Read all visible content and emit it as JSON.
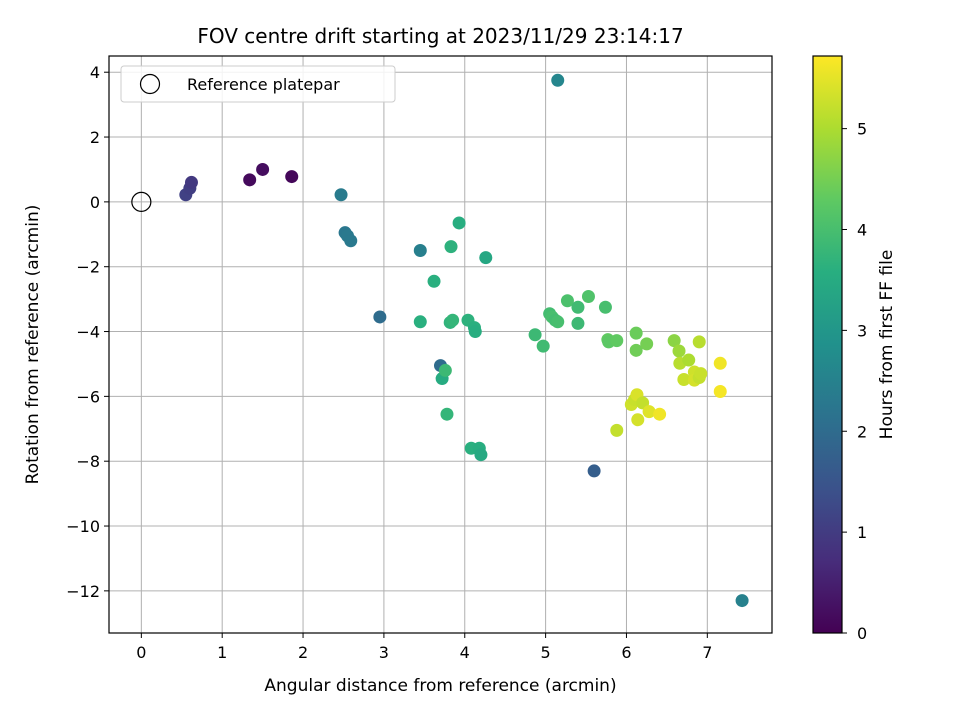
{
  "chart_data": {
    "type": "scatter",
    "title": "FOV centre drift starting at 2023/11/29 23:14:17",
    "xlabel": "Angular distance from reference (arcmin)",
    "ylabel": "Rotation from reference (arcmin)",
    "xlim": [
      -0.4,
      7.8
    ],
    "ylim": [
      -13.3,
      4.5
    ],
    "xticks": [
      0,
      1,
      2,
      3,
      4,
      5,
      6,
      7
    ],
    "yticks": [
      4,
      2,
      0,
      -2,
      -4,
      -6,
      -8,
      -10,
      -12
    ],
    "grid": true,
    "legend": {
      "position": "top-left",
      "entries": [
        {
          "label": "Reference platepar",
          "marker": "open-circle"
        }
      ]
    },
    "reference": {
      "x": 0,
      "y": 0
    },
    "colorbar": {
      "label": "Hours from first FF file",
      "range": [
        0,
        5.72
      ],
      "ticks": [
        0,
        1,
        2,
        3,
        4,
        5
      ],
      "colormap": "viridis"
    },
    "points": [
      {
        "x": 0.55,
        "y": 0.22,
        "hours": 1.1
      },
      {
        "x": 0.6,
        "y": 0.42,
        "hours": 1.05
      },
      {
        "x": 0.62,
        "y": 0.6,
        "hours": 0.95
      },
      {
        "x": 1.34,
        "y": 0.68,
        "hours": 0.15
      },
      {
        "x": 1.5,
        "y": 1.0,
        "hours": 0.2
      },
      {
        "x": 1.86,
        "y": 0.78,
        "hours": 0.1
      },
      {
        "x": 2.47,
        "y": 0.22,
        "hours": 2.35
      },
      {
        "x": 2.52,
        "y": -0.95,
        "hours": 2.25
      },
      {
        "x": 2.55,
        "y": -1.05,
        "hours": 2.3
      },
      {
        "x": 2.59,
        "y": -1.2,
        "hours": 2.3
      },
      {
        "x": 2.95,
        "y": -3.55,
        "hours": 2.0
      },
      {
        "x": 3.45,
        "y": -1.5,
        "hours": 2.45
      },
      {
        "x": 3.45,
        "y": -3.7,
        "hours": 3.6
      },
      {
        "x": 3.62,
        "y": -2.45,
        "hours": 3.6
      },
      {
        "x": 3.7,
        "y": -5.05,
        "hours": 2.0
      },
      {
        "x": 3.72,
        "y": -5.45,
        "hours": 3.5
      },
      {
        "x": 3.76,
        "y": -5.2,
        "hours": 3.85
      },
      {
        "x": 3.78,
        "y": -6.55,
        "hours": 3.75
      },
      {
        "x": 3.82,
        "y": -3.72,
        "hours": 3.7
      },
      {
        "x": 3.83,
        "y": -1.38,
        "hours": 3.65
      },
      {
        "x": 3.85,
        "y": -3.65,
        "hours": 3.75
      },
      {
        "x": 3.93,
        "y": -0.65,
        "hours": 3.55
      },
      {
        "x": 4.04,
        "y": -3.65,
        "hours": 3.65
      },
      {
        "x": 4.08,
        "y": -7.6,
        "hours": 3.6
      },
      {
        "x": 4.12,
        "y": -3.88,
        "hours": 3.6
      },
      {
        "x": 4.13,
        "y": -4.0,
        "hours": 3.55
      },
      {
        "x": 4.18,
        "y": -7.6,
        "hours": 3.55
      },
      {
        "x": 4.2,
        "y": -7.8,
        "hours": 3.45
      },
      {
        "x": 4.26,
        "y": -1.72,
        "hours": 3.4
      },
      {
        "x": 4.87,
        "y": -4.1,
        "hours": 3.85
      },
      {
        "x": 4.97,
        "y": -4.45,
        "hours": 3.9
      },
      {
        "x": 5.05,
        "y": -3.45,
        "hours": 3.95
      },
      {
        "x": 5.08,
        "y": -3.55,
        "hours": 4.0
      },
      {
        "x": 5.12,
        "y": -3.65,
        "hours": 3.95
      },
      {
        "x": 5.15,
        "y": 3.75,
        "hours": 2.6
      },
      {
        "x": 5.15,
        "y": -3.7,
        "hours": 4.0
      },
      {
        "x": 5.27,
        "y": -3.05,
        "hours": 4.05
      },
      {
        "x": 5.4,
        "y": -3.25,
        "hours": 3.9
      },
      {
        "x": 5.4,
        "y": -3.75,
        "hours": 3.85
      },
      {
        "x": 5.53,
        "y": -2.92,
        "hours": 4.1
      },
      {
        "x": 5.6,
        "y": -8.3,
        "hours": 1.7
      },
      {
        "x": 5.74,
        "y": -3.25,
        "hours": 4.0
      },
      {
        "x": 5.77,
        "y": -4.25,
        "hours": 4.3
      },
      {
        "x": 5.78,
        "y": -4.32,
        "hours": 4.25
      },
      {
        "x": 5.88,
        "y": -4.28,
        "hours": 4.3
      },
      {
        "x": 5.88,
        "y": -7.05,
        "hours": 5.2
      },
      {
        "x": 6.06,
        "y": -6.25,
        "hours": 5.3
      },
      {
        "x": 6.1,
        "y": -6.1,
        "hours": 5.25
      },
      {
        "x": 6.12,
        "y": -4.05,
        "hours": 4.4
      },
      {
        "x": 6.12,
        "y": -4.58,
        "hours": 4.45
      },
      {
        "x": 6.13,
        "y": -5.95,
        "hours": 5.4
      },
      {
        "x": 6.14,
        "y": -6.72,
        "hours": 5.35
      },
      {
        "x": 6.2,
        "y": -6.2,
        "hours": 5.2
      },
      {
        "x": 6.25,
        "y": -4.38,
        "hours": 4.5
      },
      {
        "x": 6.28,
        "y": -6.47,
        "hours": 5.45
      },
      {
        "x": 6.41,
        "y": -6.55,
        "hours": 5.6
      },
      {
        "x": 6.59,
        "y": -4.28,
        "hours": 4.7
      },
      {
        "x": 6.65,
        "y": -4.6,
        "hours": 4.85
      },
      {
        "x": 6.66,
        "y": -4.98,
        "hours": 5.1
      },
      {
        "x": 6.71,
        "y": -5.48,
        "hours": 5.25
      },
      {
        "x": 6.77,
        "y": -4.88,
        "hours": 5.0
      },
      {
        "x": 6.84,
        "y": -5.25,
        "hours": 5.3
      },
      {
        "x": 6.84,
        "y": -5.5,
        "hours": 5.35
      },
      {
        "x": 6.9,
        "y": -4.32,
        "hours": 5.1
      },
      {
        "x": 6.9,
        "y": -5.42,
        "hours": 5.2
      },
      {
        "x": 6.92,
        "y": -5.3,
        "hours": 5.25
      },
      {
        "x": 7.16,
        "y": -4.98,
        "hours": 5.6
      },
      {
        "x": 7.16,
        "y": -5.85,
        "hours": 5.65
      },
      {
        "x": 7.43,
        "y": -12.3,
        "hours": 2.5
      }
    ]
  }
}
